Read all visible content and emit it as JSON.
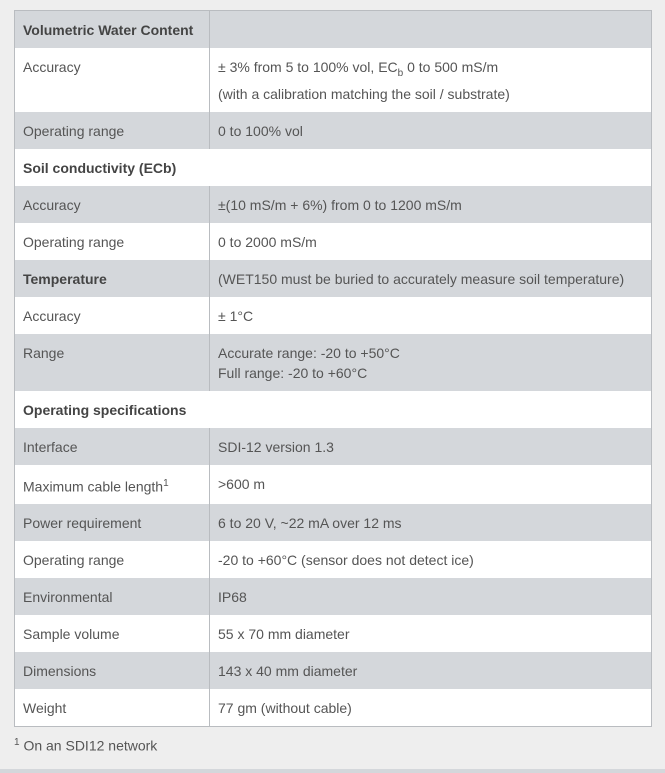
{
  "colors": {
    "stripe": "#d4d7db",
    "row": "#ffffff",
    "background": "#eeeeee",
    "text": "#555555"
  },
  "rows": [
    {
      "label": "Volumetric Water Content",
      "value": "",
      "bold": true,
      "stripe": true
    },
    {
      "label": "Accuracy",
      "value_parts": [
        "± 3% from 5 to 100% vol, EC",
        "b",
        " 0 to 500 mS/m"
      ],
      "value2": "(with a calibration matching the soil / substrate)",
      "stripe": false
    },
    {
      "label": "Operating range",
      "value": "0 to 100% vol",
      "stripe": true
    },
    {
      "label": "Soil conductivity (ECb)",
      "section": true,
      "stripe": false
    },
    {
      "label": "Accuracy",
      "value": "±(10 mS/m + 6%) from 0 to 1200 mS/m",
      "stripe": true
    },
    {
      "label": "Operating range",
      "value": "0 to 2000 mS/m",
      "stripe": false
    },
    {
      "label": "Temperature",
      "value": "(WET150 must be buried to accurately measure soil temperature)",
      "bold": true,
      "stripe": true
    },
    {
      "label": "Accuracy",
      "value": "± 1°C",
      "stripe": false
    },
    {
      "label": "Range",
      "value": "Accurate range: -20 to +50°C",
      "value2": "Full range: -20 to +60°C",
      "stripe": true
    },
    {
      "label": "Operating specifications",
      "section": true,
      "stripe": false
    },
    {
      "label": "Interface",
      "value": "SDI-12 version 1.3",
      "stripe": true
    },
    {
      "label": "Maximum cable length",
      "label_sup": "1",
      "value": ">600 m",
      "stripe": false
    },
    {
      "label": "Power requirement",
      "value": "6 to 20 V, ~22 mA over 12 ms",
      "stripe": true
    },
    {
      "label": "Operating range",
      "value": "-20 to +60°C (sensor does not detect ice)",
      "stripe": false
    },
    {
      "label": "Environmental",
      "value": "IP68",
      "stripe": true
    },
    {
      "label": "Sample volume",
      "value": "55 x 70 mm diameter",
      "stripe": false
    },
    {
      "label": "Dimensions",
      "value": "143 x 40 mm diameter",
      "stripe": true
    },
    {
      "label": "Weight",
      "value": "77 gm (without cable)",
      "stripe": false
    }
  ],
  "footnote": {
    "marker": "1",
    "text": " On an SDI12 network"
  }
}
